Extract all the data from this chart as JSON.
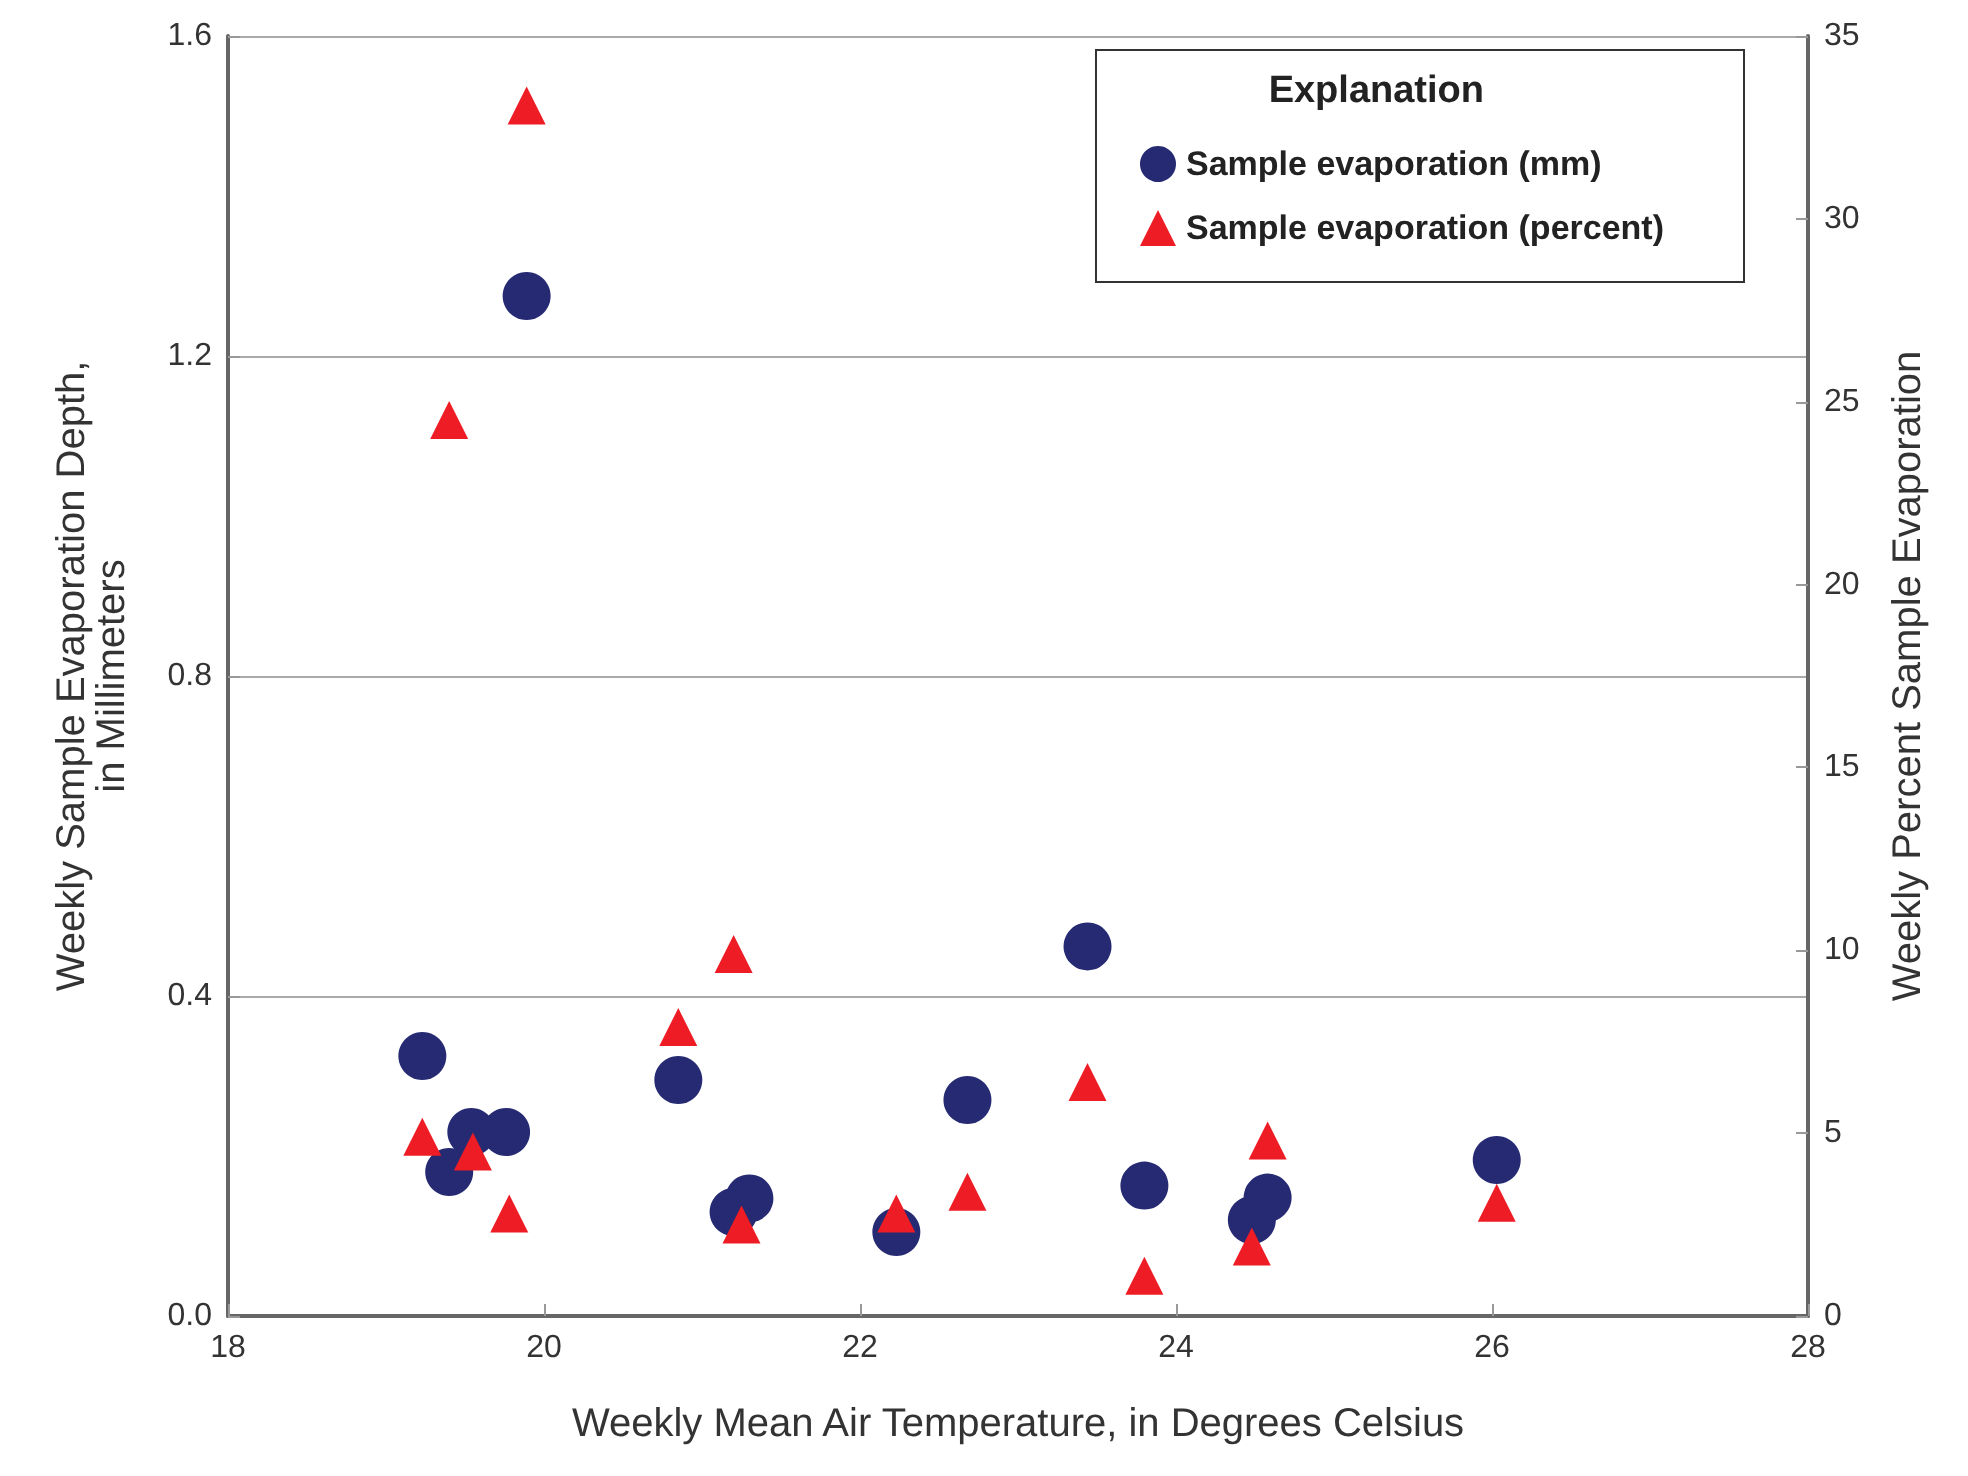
{
  "chart_data": {
    "type": "scatter",
    "xlabel": "Weekly Mean Air Temperature, in Degrees Celsius",
    "ylabel": "Weekly Sample Evaporation Depth,\nin Millimeters",
    "y2label": "Weekly Percent Sample Evaporation",
    "legend_title": "Explanation",
    "legend": "top right",
    "grid": "y",
    "xlim": [
      18,
      28
    ],
    "xticks": [
      18,
      20,
      22,
      24,
      26,
      28
    ],
    "ylim": [
      0,
      1.6
    ],
    "yticks": [
      {
        "value": 0,
        "label": "0.0"
      },
      0.4,
      0.8,
      1.2,
      1.6
    ],
    "y2lim": [
      0,
      35
    ],
    "y2ticks": [
      0,
      5,
      10,
      15,
      20,
      25,
      30,
      35
    ],
    "series": [
      {
        "name": "Sample evaporation (mm)",
        "color": "#262a72",
        "marker": "circle",
        "x": [
          19.23,
          19.4,
          19.54,
          19.76,
          19.89,
          20.85,
          21.2,
          21.3,
          22.23,
          22.68,
          23.44,
          23.8,
          24.48,
          24.58,
          26.03
        ],
        "values": [
          0.325,
          0.18,
          0.23,
          0.23,
          1.275,
          0.295,
          0.13,
          0.147,
          0.105,
          0.27,
          0.462,
          0.163,
          0.12,
          0.148,
          0.195
        ]
      },
      {
        "name": "Sample evaporation (percent)",
        "color": "#ee1c25",
        "marker": "triangle",
        "axis": "y2",
        "x": [
          19.23,
          19.4,
          19.55,
          19.78,
          19.89,
          20.85,
          21.2,
          21.25,
          22.23,
          22.68,
          23.44,
          23.8,
          24.48,
          24.58,
          26.03
        ],
        "values": [
          4.9,
          24.5,
          4.5,
          2.8,
          33.1,
          7.9,
          9.9,
          2.5,
          2.8,
          3.4,
          6.4,
          1.1,
          1.9,
          4.8,
          3.1
        ]
      }
    ]
  }
}
